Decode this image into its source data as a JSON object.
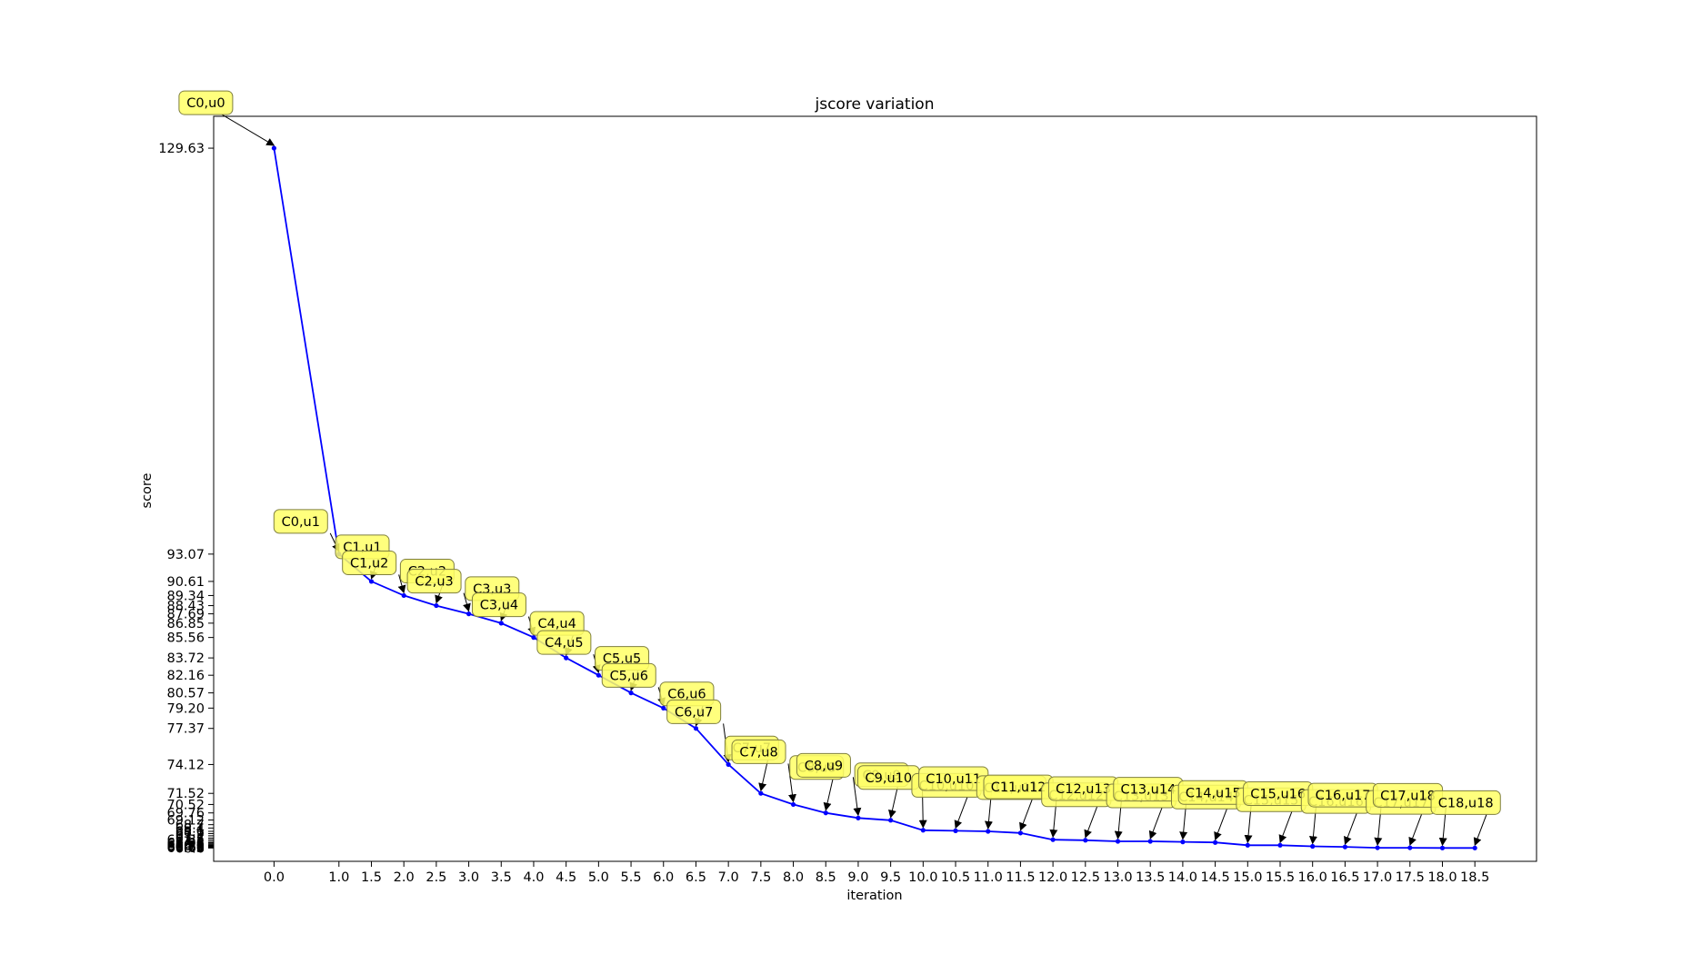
{
  "chart_data": {
    "type": "line",
    "title": "jscore variation",
    "xlabel": "iteration",
    "ylabel": "score",
    "xlim": [
      -0.93,
      19.45
    ],
    "ylim": [
      65.4,
      132.5
    ],
    "grid": false,
    "legend": "none",
    "x_ticks": [
      "0.0",
      "1.0",
      "1.5",
      "2.0",
      "2.5",
      "3.0",
      "3.5",
      "4.0",
      "4.5",
      "5.0",
      "5.5",
      "6.0",
      "6.5",
      "7.0",
      "7.5",
      "8.0",
      "8.5",
      "9.0",
      "9.5",
      "10.0",
      "10.5",
      "11.0",
      "11.5",
      "12.0",
      "12.5",
      "13.0",
      "13.5",
      "14.0",
      "14.5",
      "15.0",
      "15.5",
      "16.0",
      "16.5",
      "17.0",
      "17.5",
      "18.0",
      "18.5"
    ],
    "y_tick_labels": [
      "129.63",
      "93.07",
      "90.61",
      "89.34",
      "88.43",
      "87.69",
      "86.85",
      "85.56",
      "83.72",
      "82.16",
      "80.57",
      "79.20",
      "77.37",
      "74.12",
      "71.52",
      "70.52",
      "69.76",
      "69.12",
      "68.7",
      "68.4",
      "68.1",
      "67.9",
      "67.7",
      "67.5",
      "67.35",
      "67.2",
      "67.08",
      "66.98",
      "66.9",
      "66.85",
      "66.8",
      "66.76",
      "66.72",
      "66.69",
      "66.66",
      "66.63",
      "66.6"
    ],
    "x": [
      0.0,
      1.0,
      1.5,
      2.0,
      2.5,
      3.0,
      3.5,
      4.0,
      4.5,
      5.0,
      5.5,
      6.0,
      6.5,
      7.0,
      7.5,
      8.0,
      8.5,
      9.0,
      9.5,
      10.0,
      10.5,
      11.0,
      11.5,
      12.0,
      12.5,
      13.0,
      13.5,
      14.0,
      14.5,
      15.0,
      15.5,
      16.0,
      16.5,
      17.0,
      17.5,
      18.0,
      18.5
    ],
    "y": [
      129.63,
      93.07,
      90.61,
      89.34,
      88.43,
      87.69,
      86.85,
      85.56,
      83.72,
      82.16,
      80.57,
      79.2,
      77.37,
      74.12,
      71.52,
      70.52,
      69.76,
      69.3,
      69.1,
      68.2,
      68.15,
      68.1,
      67.95,
      67.35,
      67.3,
      67.2,
      67.2,
      67.15,
      67.1,
      66.85,
      66.85,
      66.75,
      66.7,
      66.62,
      66.62,
      66.6,
      66.6
    ],
    "labels": [
      "C0,u0",
      "C0,u1",
      "C1,u1",
      "C1,u2",
      "C2,u2",
      "C2,u3",
      "C3,u3",
      "C3,u4",
      "C4,u4",
      "C4,u5",
      "C5,u5",
      "C5,u6",
      "C6,u6",
      "C6,u7",
      "C7,u7",
      "C7,u8",
      "C8,u8",
      "C8,u9",
      "C9,u9",
      "C9,u10",
      "C10,u10",
      "C10,u11",
      "C11,u11",
      "C11,u12",
      "C12,u12",
      "C12,u13",
      "C13,u13",
      "C13,u14",
      "C14,u14",
      "C14,u15",
      "C15,u15",
      "C15,u16",
      "C16,u16",
      "C16,u17",
      "C17,u17",
      "C17,u18",
      "C18,u18"
    ],
    "colors": {
      "line": "#0000ff",
      "marker": "#0000ff",
      "label_box_fill": "#ffff66",
      "label_box_stroke": "#7f7f3f",
      "arrow": "#000000"
    }
  }
}
